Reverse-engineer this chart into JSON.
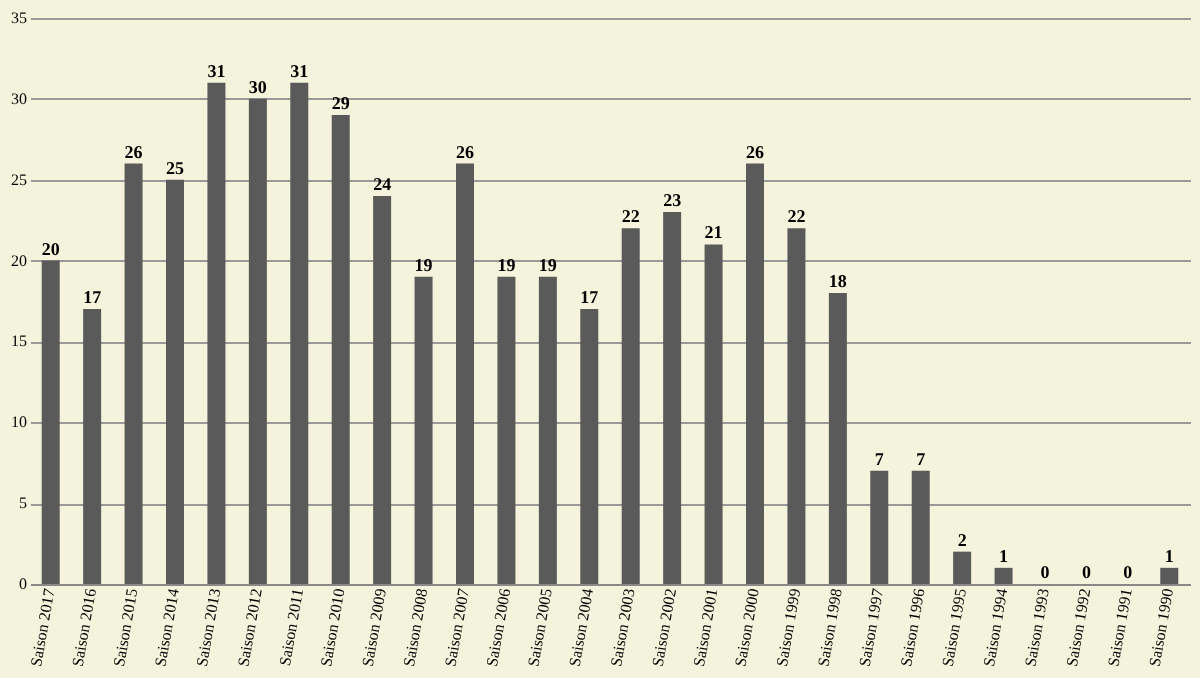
{
  "chart_data": {
    "type": "bar",
    "categories": [
      "Saison 2017",
      "Saison 2016",
      "Saison 2015",
      "Saison 2014",
      "Saison 2013",
      "Saison 2012",
      "Saison 2011",
      "Saison 2010",
      "Saison 2009",
      "Saison 2008",
      "Saison 2007",
      "Saison 2006",
      "Saison 2005",
      "Saison 2004",
      "Saison 2003",
      "Saison 2002",
      "Saison 2001",
      "Saison 2000",
      "Saison 1999",
      "Saison 1998",
      "Saison 1997",
      "Saison 1996",
      "Saison 1995",
      "Saison 1994",
      "Saison 1993",
      "Saison 1992",
      "Saison 1991",
      "Saison 1990"
    ],
    "values": [
      20,
      17,
      26,
      25,
      31,
      30,
      31,
      29,
      24,
      19,
      26,
      19,
      19,
      17,
      22,
      23,
      21,
      26,
      22,
      18,
      7,
      7,
      2,
      1,
      0,
      0,
      0,
      1
    ],
    "color": "#5a5a5a",
    "ylim": [
      0,
      35
    ],
    "yticks": [
      0,
      5,
      10,
      15,
      20,
      25,
      30,
      35
    ],
    "grid": "y",
    "data_labels": true
  }
}
